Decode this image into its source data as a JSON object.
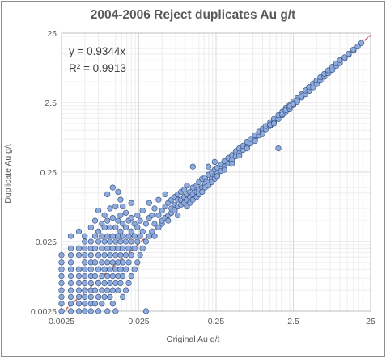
{
  "chart_data": {
    "type": "scatter",
    "title": "2004-2006 Reject duplicates Au g/t",
    "xlabel": "Original Au g/t",
    "ylabel": "Duplicate Au g/t",
    "x_scale": "log",
    "y_scale": "log",
    "xlim": [
      0.0025,
      25
    ],
    "ylim": [
      0.0025,
      25
    ],
    "x_ticks": [
      0.0025,
      0.025,
      0.25,
      2.5,
      25
    ],
    "y_ticks": [
      0.0025,
      0.025,
      0.25,
      2.5,
      25
    ],
    "x_tick_labels": [
      "0.0025",
      "0.025",
      "0.25",
      "2.5",
      "25"
    ],
    "y_tick_labels": [
      "0.0025",
      "0.025",
      "0.25",
      "2.5",
      "25"
    ],
    "grid": true,
    "trendline": {
      "equation": "y = 0.9344x",
      "r_squared": "R² = 0.9913",
      "slope": 0.9344
    },
    "marker_color": "#8ea9db",
    "marker_edge": "#2f4b7c",
    "trendline_color": "#c0504d",
    "points": [
      [
        0.0025,
        0.0025
      ],
      [
        0.0025,
        0.0032
      ],
      [
        0.0025,
        0.004
      ],
      [
        0.0025,
        0.005
      ],
      [
        0.0025,
        0.0063
      ],
      [
        0.0025,
        0.008
      ],
      [
        0.0025,
        0.01
      ],
      [
        0.0025,
        0.0125
      ],
      [
        0.0025,
        0.016
      ],
      [
        0.0033,
        0.0025
      ],
      [
        0.0033,
        0.0032
      ],
      [
        0.0033,
        0.004
      ],
      [
        0.0033,
        0.005
      ],
      [
        0.0033,
        0.0063
      ],
      [
        0.0033,
        0.008
      ],
      [
        0.0033,
        0.01
      ],
      [
        0.0033,
        0.0125
      ],
      [
        0.0033,
        0.016
      ],
      [
        0.0033,
        0.02
      ],
      [
        0.0033,
        0.03
      ],
      [
        0.0042,
        0.0025
      ],
      [
        0.0042,
        0.0032
      ],
      [
        0.0042,
        0.004
      ],
      [
        0.0042,
        0.005
      ],
      [
        0.0042,
        0.0063
      ],
      [
        0.0042,
        0.008
      ],
      [
        0.0042,
        0.01
      ],
      [
        0.0042,
        0.016
      ],
      [
        0.0042,
        0.02
      ],
      [
        0.0042,
        0.035
      ],
      [
        0.005,
        0.0025
      ],
      [
        0.005,
        0.0032
      ],
      [
        0.005,
        0.004
      ],
      [
        0.005,
        0.005
      ],
      [
        0.005,
        0.0063
      ],
      [
        0.005,
        0.008
      ],
      [
        0.005,
        0.01
      ],
      [
        0.005,
        0.0125
      ],
      [
        0.005,
        0.016
      ],
      [
        0.005,
        0.02
      ],
      [
        0.005,
        0.025
      ],
      [
        0.005,
        0.03
      ],
      [
        0.006,
        0.0025
      ],
      [
        0.006,
        0.0032
      ],
      [
        0.006,
        0.004
      ],
      [
        0.006,
        0.005
      ],
      [
        0.006,
        0.0063
      ],
      [
        0.006,
        0.008
      ],
      [
        0.006,
        0.01
      ],
      [
        0.006,
        0.0125
      ],
      [
        0.006,
        0.016
      ],
      [
        0.006,
        0.02
      ],
      [
        0.006,
        0.025
      ],
      [
        0.006,
        0.04
      ],
      [
        0.0068,
        0.0032
      ],
      [
        0.0068,
        0.005
      ],
      [
        0.0068,
        0.008
      ],
      [
        0.0068,
        0.0125
      ],
      [
        0.0068,
        0.02
      ],
      [
        0.0068,
        0.03
      ],
      [
        0.0068,
        0.05
      ],
      [
        0.0075,
        0.0025
      ],
      [
        0.0075,
        0.004
      ],
      [
        0.0075,
        0.0063
      ],
      [
        0.0075,
        0.01
      ],
      [
        0.0075,
        0.016
      ],
      [
        0.0075,
        0.025
      ],
      [
        0.0075,
        0.035
      ],
      [
        0.0075,
        0.07
      ],
      [
        0.0083,
        0.0032
      ],
      [
        0.0083,
        0.005
      ],
      [
        0.0083,
        0.008
      ],
      [
        0.0083,
        0.0125
      ],
      [
        0.0083,
        0.02
      ],
      [
        0.0083,
        0.03
      ],
      [
        0.0083,
        0.045
      ],
      [
        0.009,
        0.004
      ],
      [
        0.009,
        0.0063
      ],
      [
        0.009,
        0.01
      ],
      [
        0.009,
        0.016
      ],
      [
        0.009,
        0.025
      ],
      [
        0.009,
        0.04
      ],
      [
        0.009,
        0.06
      ],
      [
        0.0098,
        0.0025
      ],
      [
        0.0098,
        0.005
      ],
      [
        0.0098,
        0.008
      ],
      [
        0.0098,
        0.0125
      ],
      [
        0.0098,
        0.02
      ],
      [
        0.0098,
        0.03
      ],
      [
        0.0098,
        0.05
      ],
      [
        0.0098,
        0.12
      ],
      [
        0.0106,
        0.004
      ],
      [
        0.0106,
        0.0063
      ],
      [
        0.0106,
        0.01
      ],
      [
        0.0106,
        0.016
      ],
      [
        0.0106,
        0.025
      ],
      [
        0.0106,
        0.04
      ],
      [
        0.0106,
        0.075
      ],
      [
        0.0115,
        0.0032
      ],
      [
        0.0115,
        0.005
      ],
      [
        0.0115,
        0.008
      ],
      [
        0.0115,
        0.0125
      ],
      [
        0.0115,
        0.02
      ],
      [
        0.0115,
        0.03
      ],
      [
        0.0115,
        0.055
      ],
      [
        0.0115,
        0.15
      ],
      [
        0.0125,
        0.0025
      ],
      [
        0.0125,
        0.0063
      ],
      [
        0.0125,
        0.01
      ],
      [
        0.0125,
        0.016
      ],
      [
        0.0125,
        0.025
      ],
      [
        0.0125,
        0.04
      ],
      [
        0.0125,
        0.08
      ],
      [
        0.0135,
        0.005
      ],
      [
        0.0135,
        0.008
      ],
      [
        0.0135,
        0.0125
      ],
      [
        0.0135,
        0.02
      ],
      [
        0.0135,
        0.03
      ],
      [
        0.0135,
        0.05
      ],
      [
        0.0135,
        0.13
      ],
      [
        0.0145,
        0.0063
      ],
      [
        0.0145,
        0.01
      ],
      [
        0.0145,
        0.016
      ],
      [
        0.0145,
        0.025
      ],
      [
        0.0145,
        0.035
      ],
      [
        0.0145,
        0.06
      ],
      [
        0.0145,
        0.1
      ],
      [
        0.0155,
        0.004
      ],
      [
        0.0155,
        0.008
      ],
      [
        0.0155,
        0.0125
      ],
      [
        0.0155,
        0.02
      ],
      [
        0.0155,
        0.03
      ],
      [
        0.0155,
        0.045
      ],
      [
        0.0155,
        0.08
      ],
      [
        0.017,
        0.005
      ],
      [
        0.017,
        0.01
      ],
      [
        0.017,
        0.016
      ],
      [
        0.017,
        0.025
      ],
      [
        0.017,
        0.04
      ],
      [
        0.017,
        0.065
      ],
      [
        0.0185,
        0.0063
      ],
      [
        0.0185,
        0.0125
      ],
      [
        0.0185,
        0.02
      ],
      [
        0.0185,
        0.03
      ],
      [
        0.0185,
        0.05
      ],
      [
        0.02,
        0.008
      ],
      [
        0.02,
        0.016
      ],
      [
        0.02,
        0.025
      ],
      [
        0.02,
        0.035
      ],
      [
        0.02,
        0.055
      ],
      [
        0.02,
        0.09
      ],
      [
        0.022,
        0.01
      ],
      [
        0.022,
        0.02
      ],
      [
        0.022,
        0.03
      ],
      [
        0.022,
        0.045
      ],
      [
        0.024,
        0.0125
      ],
      [
        0.024,
        0.025
      ],
      [
        0.024,
        0.04
      ],
      [
        0.024,
        0.06
      ],
      [
        0.026,
        0.016
      ],
      [
        0.026,
        0.03
      ],
      [
        0.026,
        0.05
      ],
      [
        0.028,
        0.02
      ],
      [
        0.028,
        0.035
      ],
      [
        0.028,
        0.07
      ],
      [
        0.031,
        0.0025
      ],
      [
        0.031,
        0.025
      ],
      [
        0.031,
        0.045
      ],
      [
        0.034,
        0.03
      ],
      [
        0.034,
        0.055
      ],
      [
        0.034,
        0.09
      ],
      [
        0.037,
        0.035
      ],
      [
        0.037,
        0.06
      ],
      [
        0.04,
        0.03
      ],
      [
        0.04,
        0.045
      ],
      [
        0.04,
        0.075
      ],
      [
        0.045,
        0.04
      ],
      [
        0.045,
        0.06
      ],
      [
        0.045,
        0.1
      ],
      [
        0.05,
        0.045
      ],
      [
        0.05,
        0.07
      ],
      [
        0.05,
        0.05
      ],
      [
        0.055,
        0.055
      ],
      [
        0.055,
        0.08
      ],
      [
        0.055,
        0.12
      ],
      [
        0.06,
        0.06
      ],
      [
        0.06,
        0.09
      ],
      [
        0.06,
        0.05
      ],
      [
        0.066,
        0.065
      ],
      [
        0.066,
        0.1
      ],
      [
        0.066,
        0.075
      ],
      [
        0.073,
        0.07
      ],
      [
        0.073,
        0.11
      ],
      [
        0.073,
        0.085
      ],
      [
        0.08,
        0.08
      ],
      [
        0.08,
        0.12
      ],
      [
        0.08,
        0.06
      ],
      [
        0.08,
        0.1
      ],
      [
        0.088,
        0.085
      ],
      [
        0.088,
        0.13
      ],
      [
        0.088,
        0.1
      ],
      [
        0.097,
        0.09
      ],
      [
        0.097,
        0.11
      ],
      [
        0.097,
        0.14
      ],
      [
        0.105,
        0.1
      ],
      [
        0.105,
        0.12
      ],
      [
        0.105,
        0.08
      ],
      [
        0.105,
        0.16
      ],
      [
        0.115,
        0.11
      ],
      [
        0.115,
        0.13
      ],
      [
        0.115,
        0.09
      ],
      [
        0.125,
        0.12
      ],
      [
        0.125,
        0.15
      ],
      [
        0.125,
        0.1
      ],
      [
        0.125,
        0.3
      ],
      [
        0.14,
        0.13
      ],
      [
        0.14,
        0.16
      ],
      [
        0.14,
        0.11
      ],
      [
        0.15,
        0.14
      ],
      [
        0.15,
        0.18
      ],
      [
        0.15,
        0.12
      ],
      [
        0.165,
        0.15
      ],
      [
        0.165,
        0.2
      ],
      [
        0.165,
        0.13
      ],
      [
        0.18,
        0.17
      ],
      [
        0.18,
        0.21
      ],
      [
        0.18,
        0.15
      ],
      [
        0.2,
        0.18
      ],
      [
        0.2,
        0.23
      ],
      [
        0.2,
        0.16
      ],
      [
        0.2,
        0.3
      ],
      [
        0.22,
        0.2
      ],
      [
        0.22,
        0.25
      ],
      [
        0.22,
        0.18
      ],
      [
        0.24,
        0.22
      ],
      [
        0.24,
        0.27
      ],
      [
        0.24,
        0.2
      ],
      [
        0.24,
        0.35
      ],
      [
        0.26,
        0.24
      ],
      [
        0.26,
        0.29
      ],
      [
        0.26,
        0.22
      ],
      [
        0.29,
        0.26
      ],
      [
        0.29,
        0.32
      ],
      [
        0.32,
        0.3
      ],
      [
        0.32,
        0.36
      ],
      [
        0.32,
        0.27
      ],
      [
        0.36,
        0.33
      ],
      [
        0.36,
        0.4
      ],
      [
        0.4,
        0.37
      ],
      [
        0.4,
        0.44
      ],
      [
        0.4,
        0.33
      ],
      [
        0.45,
        0.42
      ],
      [
        0.45,
        0.5
      ],
      [
        0.5,
        0.47
      ],
      [
        0.5,
        0.55
      ],
      [
        0.5,
        0.43
      ],
      [
        0.56,
        0.52
      ],
      [
        0.56,
        0.6
      ],
      [
        0.63,
        0.58
      ],
      [
        0.63,
        0.68
      ],
      [
        0.63,
        0.55
      ],
      [
        0.7,
        0.65
      ],
      [
        0.7,
        0.75
      ],
      [
        0.8,
        0.75
      ],
      [
        0.8,
        0.85
      ],
      [
        0.8,
        0.7
      ],
      [
        0.9,
        0.84
      ],
      [
        0.9,
        0.95
      ],
      [
        1.0,
        0.95
      ],
      [
        1.0,
        1.05
      ],
      [
        1.0,
        0.9
      ],
      [
        1.1,
        1.03
      ],
      [
        1.1,
        1.15
      ],
      [
        1.25,
        1.15
      ],
      [
        1.25,
        1.3
      ],
      [
        1.25,
        1.2
      ],
      [
        1.4,
        1.3
      ],
      [
        1.4,
        1.45
      ],
      [
        1.4,
        1.25
      ],
      [
        1.6,
        1.45
      ],
      [
        1.6,
        1.65
      ],
      [
        1.6,
        0.55
      ],
      [
        1.8,
        1.65
      ],
      [
        1.8,
        1.85
      ],
      [
        1.8,
        1.7
      ],
      [
        2.0,
        1.85
      ],
      [
        2.0,
        2.1
      ],
      [
        2.0,
        1.95
      ],
      [
        2.25,
        2.05
      ],
      [
        2.25,
        2.35
      ],
      [
        2.25,
        2.2
      ],
      [
        2.5,
        2.3
      ],
      [
        2.5,
        2.6
      ],
      [
        2.5,
        2.4
      ],
      [
        2.8,
        2.55
      ],
      [
        2.8,
        2.9
      ],
      [
        2.8,
        2.7
      ],
      [
        3.2,
        2.95
      ],
      [
        3.2,
        3.3
      ],
      [
        3.2,
        3.1
      ],
      [
        3.6,
        3.3
      ],
      [
        3.6,
        3.75
      ],
      [
        4.0,
        3.7
      ],
      [
        4.0,
        4.2
      ],
      [
        4.5,
        4.15
      ],
      [
        4.5,
        4.7
      ],
      [
        5.0,
        4.6
      ],
      [
        5.0,
        5.2
      ],
      [
        5.6,
        5.2
      ],
      [
        5.6,
        5.8
      ],
      [
        6.3,
        5.9
      ],
      [
        6.3,
        6.5
      ],
      [
        7.1,
        6.6
      ],
      [
        7.1,
        7.3
      ],
      [
        8.0,
        7.4
      ],
      [
        8.0,
        8.2
      ],
      [
        9.0,
        8.4
      ],
      [
        9.0,
        9.2
      ],
      [
        10.0,
        9.3
      ],
      [
        10.0,
        10.2
      ],
      [
        11.5,
        10.7
      ],
      [
        11.5,
        11.2
      ],
      [
        13.0,
        12.2
      ],
      [
        13.0,
        12.6
      ],
      [
        15.0,
        14.0
      ],
      [
        15.0,
        14.5
      ],
      [
        17.0,
        16.0
      ],
      [
        19.0,
        18.0
      ]
    ]
  }
}
